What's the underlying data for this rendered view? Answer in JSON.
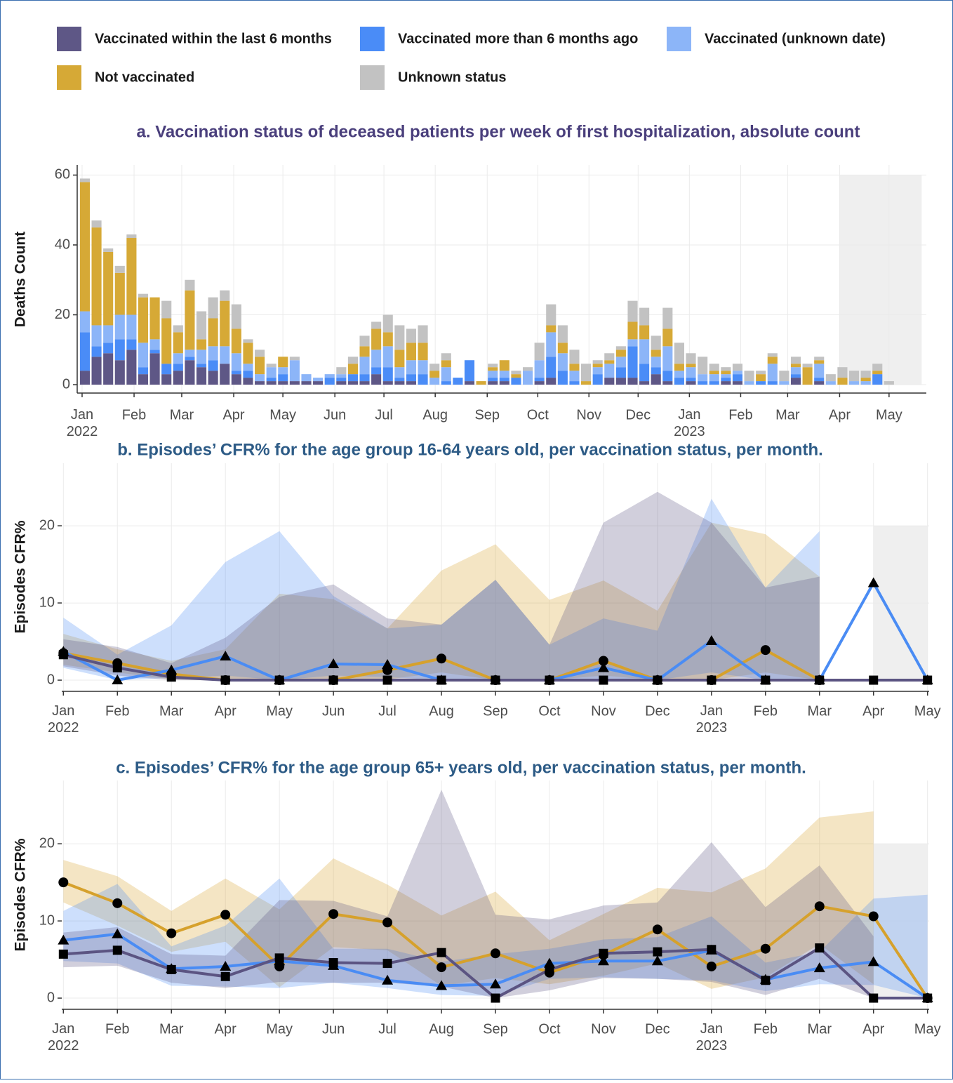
{
  "chart_data": [
    {
      "type": "bar",
      "stacked": true,
      "legend": "top",
      "title": "a. Vaccination status of deceased patients per week of first hospitalization, absolute count",
      "ylabel": "Deaths Count",
      "categories": [
        null,
        null,
        null,
        null,
        null,
        null,
        null,
        null,
        null,
        null,
        null,
        null,
        null,
        null,
        null,
        null,
        null,
        null,
        null,
        null,
        null,
        null,
        null,
        null,
        null,
        null,
        null,
        null,
        null,
        null,
        null,
        null,
        null,
        null,
        null,
        null,
        null,
        null,
        null,
        null,
        null,
        null,
        null,
        null,
        null,
        null,
        null,
        null,
        null,
        null,
        null,
        null,
        null,
        null,
        null,
        null,
        null,
        null,
        null,
        null,
        null,
        null,
        null,
        null,
        null,
        null,
        null,
        null,
        null,
        null
      ],
      "series": [
        {
          "name": "Vaccinated within the last 6 months",
          "color": "#5e5786",
          "values": [
            4,
            8,
            9,
            7,
            10,
            3,
            9,
            3,
            4,
            7,
            5,
            4,
            6,
            3,
            2,
            1,
            1,
            1,
            1,
            1,
            1,
            0,
            1,
            1,
            1,
            3,
            1,
            1,
            1,
            0,
            0,
            0,
            0,
            1,
            0,
            1,
            1,
            0,
            0,
            1,
            2,
            0,
            0,
            0,
            0,
            2,
            2,
            2,
            1,
            3,
            1,
            0,
            1,
            0,
            0,
            1,
            1,
            0,
            0,
            0,
            0,
            2,
            0,
            1,
            0,
            0,
            0,
            0,
            0,
            0
          ]
        },
        {
          "name": "Vaccinated more than 6 months ago",
          "color": "#4a8cf7",
          "values": [
            11,
            3,
            3,
            6,
            3,
            2,
            1,
            3,
            2,
            1,
            1,
            3,
            0,
            1,
            2,
            0,
            1,
            2,
            0,
            0,
            0,
            2,
            1,
            2,
            2,
            2,
            4,
            1,
            2,
            3,
            0,
            1,
            2,
            6,
            0,
            1,
            1,
            2,
            0,
            1,
            6,
            4,
            1,
            0,
            3,
            0,
            3,
            9,
            5,
            2,
            3,
            2,
            1,
            1,
            1,
            1,
            2,
            0,
            1,
            1,
            0,
            1,
            0,
            1,
            0,
            0,
            0,
            0,
            3,
            0
          ]
        },
        {
          "name": "Vaccinated (unknown date)",
          "color": "#8cb5f8",
          "values": [
            6,
            6,
            5,
            7,
            7,
            7,
            3,
            0,
            3,
            2,
            4,
            4,
            5,
            5,
            2,
            2,
            3,
            2,
            6,
            2,
            1,
            1,
            1,
            0,
            5,
            5,
            6,
            3,
            4,
            4,
            2,
            4,
            0,
            0,
            0,
            2,
            2,
            0,
            4,
            5,
            7,
            5,
            3,
            0,
            2,
            4,
            3,
            2,
            7,
            3,
            7,
            2,
            3,
            2,
            2,
            1,
            1,
            1,
            0,
            5,
            1,
            2,
            0,
            4,
            1,
            0,
            1,
            1,
            0,
            0
          ]
        },
        {
          "name": "Not vaccinated",
          "color": "#d6a936",
          "values": [
            37,
            28,
            21,
            12,
            22,
            13,
            12,
            13,
            6,
            17,
            3,
            8,
            13,
            7,
            6,
            5,
            0,
            3,
            0,
            0,
            0,
            0,
            0,
            3,
            3,
            6,
            4,
            5,
            5,
            5,
            2,
            2,
            0,
            0,
            1,
            1,
            3,
            1,
            0,
            0,
            2,
            3,
            2,
            1,
            1,
            1,
            2,
            5,
            4,
            2,
            5,
            2,
            1,
            0,
            1,
            1,
            0,
            0,
            2,
            2,
            0,
            1,
            5,
            1,
            0,
            2,
            0,
            1,
            1,
            0
          ]
        },
        {
          "name": "Unknown status",
          "color": "#c2c2c2",
          "values": [
            1,
            2,
            1,
            2,
            1,
            1,
            0,
            5,
            2,
            3,
            8,
            6,
            3,
            7,
            1,
            2,
            1,
            0,
            1,
            0,
            0,
            0,
            2,
            2,
            3,
            2,
            5,
            7,
            4,
            5,
            2,
            2,
            0,
            0,
            0,
            1,
            0,
            1,
            1,
            5,
            6,
            5,
            4,
            5,
            1,
            2,
            1,
            6,
            5,
            4,
            6,
            6,
            3,
            5,
            2,
            1,
            2,
            3,
            1,
            1,
            3,
            2,
            1,
            1,
            2,
            3,
            3,
            2,
            2,
            1
          ]
        }
      ],
      "xlim": [
        -0.66,
        72.2
      ],
      "xticks": [
        {
          "value": -0.24,
          "label": "Jan\n2022"
        },
        {
          "value": 4.22,
          "label": "Feb"
        },
        {
          "value": 8.31,
          "label": "Mar"
        },
        {
          "value": 12.77,
          "label": "Apr"
        },
        {
          "value": 16.99,
          "label": "May"
        },
        {
          "value": 21.45,
          "label": "Jun"
        },
        {
          "value": 25.66,
          "label": "Jul"
        },
        {
          "value": 30.06,
          "label": "Aug"
        },
        {
          "value": 34.52,
          "label": "Sep"
        },
        {
          "value": 38.86,
          "label": "Oct"
        },
        {
          "value": 43.25,
          "label": "Nov"
        },
        {
          "value": 47.47,
          "label": "Dec"
        },
        {
          "value": 51.87,
          "label": "Jan\n2023"
        },
        {
          "value": 56.27,
          "label": "Feb"
        },
        {
          "value": 60.3,
          "label": "Mar"
        },
        {
          "value": 64.76,
          "label": "Apr"
        },
        {
          "value": 69.0,
          "label": "May"
        }
      ],
      "ylim": [
        -2.4,
        62.9
      ],
      "yticks": [
        0,
        20,
        40,
        60
      ],
      "grid": true,
      "shade": {
        "x": [
          64.76,
          71.8
        ],
        "y": [
          0,
          60
        ]
      }
    },
    {
      "type": "line",
      "title": "b. Episodes’ CFR% for the age group 16-64 years old, per vaccination status, per month.",
      "ylabel": "Episodes  CFR%",
      "categories": [
        "Jan\n2022",
        "Feb",
        "Mar",
        "Apr",
        "May",
        "Jun",
        "Jul",
        "Aug",
        "Sep",
        "Oct",
        "Nov",
        "Dec",
        "Jan\n2023",
        "Feb",
        "Mar",
        "Apr",
        "May"
      ],
      "xlim": [
        -0.03,
        16.03
      ],
      "ylim": [
        -1.45,
        28.1
      ],
      "yticks": [
        0,
        10,
        20
      ],
      "grid": true,
      "shade": {
        "x": [
          15,
          16
        ],
        "y": [
          0,
          20
        ]
      },
      "series": [
        {
          "color": "#d6a12c",
          "marker": "circle",
          "values": [
            3.5,
            2.2,
            0.8,
            0,
            0,
            0,
            1.3,
            2.8,
            0,
            0,
            2.5,
            0,
            0,
            3.9,
            0,
            null,
            null
          ],
          "lower": [
            2.0,
            1.0,
            0.1,
            0,
            0,
            0,
            0.1,
            1.0,
            0,
            0,
            0.6,
            0,
            0,
            1.0,
            0,
            null,
            null
          ],
          "upper": [
            6.0,
            4.0,
            2.5,
            4.0,
            11.2,
            10.5,
            6.7,
            14.2,
            17.6,
            10.4,
            12.9,
            9.0,
            20.4,
            18.9,
            13.4,
            null,
            null
          ]
        },
        {
          "color": "#4a8cf4",
          "marker": "triangle",
          "values": [
            3.7,
            0,
            1.3,
            3.1,
            0,
            2.1,
            2.0,
            0,
            0,
            0,
            1.6,
            0,
            5.1,
            0,
            0,
            12.6,
            0
          ],
          "lower": [
            1.6,
            0,
            0.3,
            0.6,
            0,
            0.6,
            0.4,
            0,
            0,
            0,
            0,
            0,
            1.0,
            0,
            0,
            null,
            null
          ],
          "upper": [
            8.1,
            3.3,
            7.1,
            15.3,
            19.3,
            10.9,
            6.7,
            7.2,
            13.0,
            4.6,
            8.0,
            6.4,
            23.5,
            12.0,
            19.3,
            null,
            null
          ]
        },
        {
          "color": "#5b5482",
          "marker": "square",
          "values": [
            3.3,
            1.6,
            0.4,
            0,
            0,
            0,
            0,
            0,
            0,
            0,
            0,
            0,
            0,
            0,
            0,
            0,
            0
          ],
          "lower": [
            1.8,
            0.6,
            0,
            0,
            0,
            0,
            0,
            0,
            0,
            0,
            0,
            0,
            0,
            0,
            0,
            null,
            null
          ],
          "upper": [
            5.3,
            4.3,
            2.2,
            5.5,
            10.8,
            12.4,
            8.0,
            7.2,
            13.0,
            4.6,
            20.4,
            24.4,
            20.4,
            12.0,
            13.4,
            null,
            null
          ]
        }
      ]
    },
    {
      "type": "line",
      "title": "c. Episodes’ CFR% for the age group 65+ years old, per vaccination status, per month.",
      "ylabel": "Episodes  CFR%",
      "categories": [
        "Jan\n2022",
        "Feb",
        "Mar",
        "Apr",
        "May",
        "Jun",
        "Jul",
        "Aug",
        "Sep",
        "Oct",
        "Nov",
        "Dec",
        "Jan\n2023",
        "Feb",
        "Mar",
        "Apr",
        "May"
      ],
      "xlim": [
        -0.03,
        16.03
      ],
      "ylim": [
        -1.45,
        28.2
      ],
      "yticks": [
        0,
        10,
        20
      ],
      "grid": true,
      "shade": {
        "x": [
          15,
          16
        ],
        "y": [
          0,
          20
        ]
      },
      "series": [
        {
          "color": "#d6a12c",
          "marker": "circle",
          "values": [
            15.0,
            12.3,
            8.4,
            10.8,
            4.1,
            10.9,
            9.8,
            4.0,
            5.8,
            3.3,
            5.6,
            8.9,
            4.1,
            6.4,
            11.9,
            10.6,
            0
          ],
          "lower": [
            12.4,
            9.4,
            6.0,
            7.3,
            1.4,
            6.6,
            6.2,
            1.6,
            2.6,
            1.8,
            2.9,
            4.5,
            1.2,
            2.7,
            7.0,
            1.8,
            null
          ],
          "upper": [
            17.9,
            15.8,
            11.3,
            15.5,
            11.5,
            18.1,
            14.7,
            10.7,
            13.8,
            7.5,
            10.9,
            14.3,
            13.7,
            16.8,
            23.4,
            24.2,
            null
          ]
        },
        {
          "color": "#4a8cf4",
          "marker": "triangle",
          "values": [
            7.5,
            8.3,
            3.8,
            4.1,
            4.8,
            4.2,
            2.3,
            1.6,
            1.8,
            4.5,
            4.8,
            4.8,
            6.2,
            2.4,
            3.9,
            4.7,
            0
          ],
          "lower": [
            4.8,
            4.5,
            1.6,
            1.5,
            1.3,
            2.0,
            1.3,
            0.4,
            0.3,
            2.5,
            2.7,
            2.5,
            2.3,
            0.9,
            1.8,
            1.7,
            0
          ],
          "upper": [
            11.3,
            14.8,
            6.7,
            9.4,
            15.5,
            6.4,
            6.4,
            4.7,
            5.7,
            6.4,
            7.6,
            7.9,
            10.6,
            4.6,
            6.0,
            12.9,
            13.4
          ]
        },
        {
          "color": "#5b5482",
          "marker": "square",
          "values": [
            5.7,
            6.2,
            3.7,
            2.8,
            5.2,
            4.6,
            4.5,
            5.9,
            0,
            3.7,
            5.8,
            6.0,
            6.3,
            2.3,
            6.5,
            0,
            0
          ],
          "lower": [
            4.0,
            4.2,
            2.0,
            1.3,
            2.1,
            2.0,
            2.0,
            1.5,
            0,
            1.0,
            2.6,
            2.5,
            2.1,
            0.4,
            2.5,
            0,
            null
          ],
          "upper": [
            8.5,
            9.2,
            5.7,
            5.5,
            12.7,
            12.6,
            10.6,
            27.0,
            10.8,
            10.2,
            12.0,
            12.4,
            20.2,
            11.8,
            17.2,
            8.0,
            null
          ]
        }
      ]
    }
  ]
}
